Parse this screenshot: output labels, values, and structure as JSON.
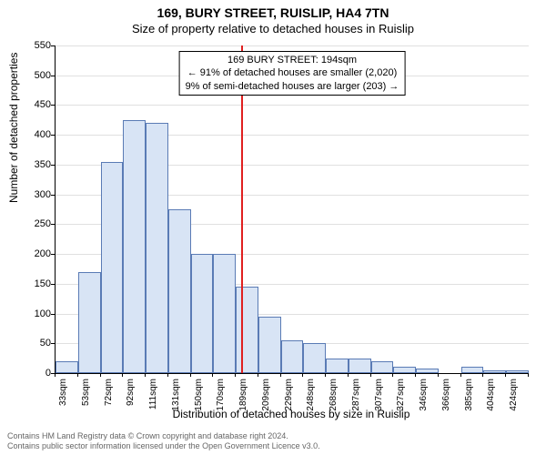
{
  "title": "169, BURY STREET, RUISLIP, HA4 7TN",
  "subtitle": "Size of property relative to detached houses in Ruislip",
  "ylabel": "Number of detached properties",
  "xlabel": "Distribution of detached houses by size in Ruislip",
  "chart": {
    "type": "histogram",
    "ylim": [
      0,
      550
    ],
    "ytick_step": 50,
    "background_color": "#ffffff",
    "grid_color": "#e0e0e0",
    "bar_fill": "#d8e4f5",
    "bar_border": "#5a7bb5",
    "reference_line_color": "#e02020",
    "reference_x": 194,
    "categories": [
      "33sqm",
      "53sqm",
      "72sqm",
      "92sqm",
      "111sqm",
      "131sqm",
      "150sqm",
      "170sqm",
      "189sqm",
      "209sqm",
      "229sqm",
      "248sqm",
      "268sqm",
      "287sqm",
      "307sqm",
      "327sqm",
      "346sqm",
      "366sqm",
      "385sqm",
      "404sqm",
      "424sqm"
    ],
    "values": [
      20,
      170,
      355,
      425,
      420,
      275,
      200,
      200,
      145,
      95,
      55,
      50,
      25,
      25,
      20,
      10,
      8,
      0,
      10,
      4,
      5
    ],
    "label_fontsize": 12,
    "tick_fontsize": 10
  },
  "annotation": {
    "line1": "169 BURY STREET: 194sqm",
    "line2": "← 91% of detached houses are smaller (2,020)",
    "line3": "9% of semi-detached houses are larger (203) →"
  },
  "footer": {
    "line1": "Contains HM Land Registry data © Crown copyright and database right 2024.",
    "line2": "Contains public sector information licensed under the Open Government Licence v3.0."
  }
}
